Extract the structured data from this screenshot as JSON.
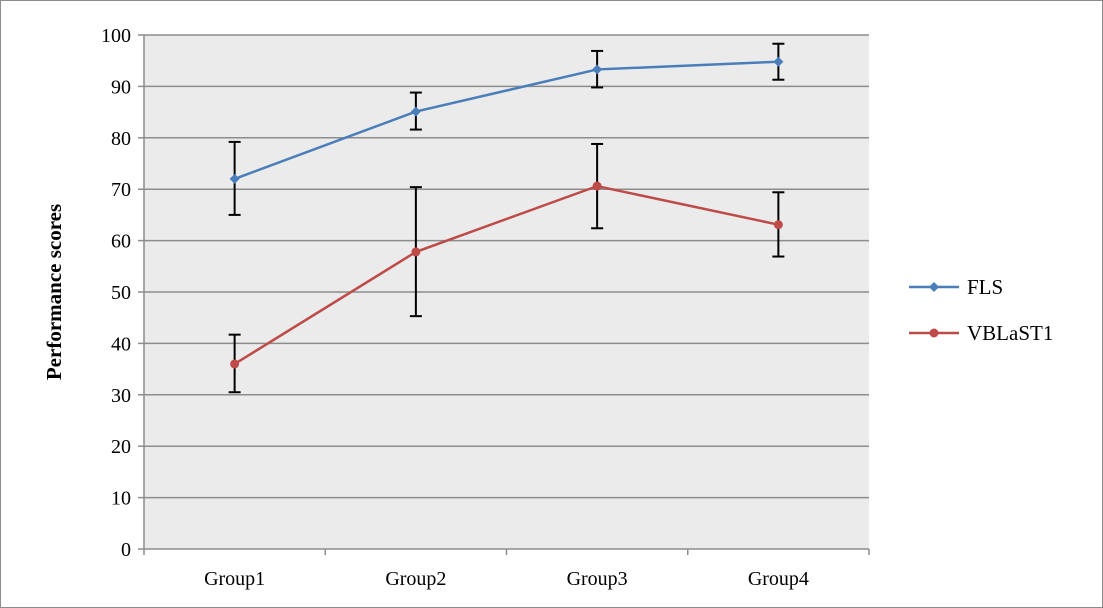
{
  "chart_data": {
    "type": "line",
    "categories": [
      "Group1",
      "Group2",
      "Group3",
      "Group4"
    ],
    "series": [
      {
        "name": "FLS",
        "color": "#4a7ebb",
        "marker": "diamond",
        "values": [
          72,
          85.1,
          93.3,
          94.8
        ],
        "error_low": [
          65,
          81.6,
          89.8,
          91.3
        ],
        "error_high": [
          79.2,
          88.8,
          96.9,
          98.3
        ]
      },
      {
        "name": "VBLaST1",
        "color": "#be4b48",
        "marker": "circle",
        "values": [
          36,
          57.8,
          70.6,
          63.1
        ],
        "error_low": [
          30.5,
          45.3,
          62.4,
          56.9
        ],
        "error_high": [
          41.7,
          70.4,
          78.8,
          69.4
        ]
      }
    ],
    "xlabel": "",
    "ylabel": "Performance scores",
    "ylim": [
      0,
      100
    ],
    "yticks": [
      "0",
      "10",
      "20",
      "30",
      "40",
      "50",
      "60",
      "70",
      "80",
      "90",
      "100"
    ],
    "grid": true,
    "plot_background": "#ebebeb",
    "gridline_color": "#8c8c8c",
    "legend_position": "right"
  }
}
